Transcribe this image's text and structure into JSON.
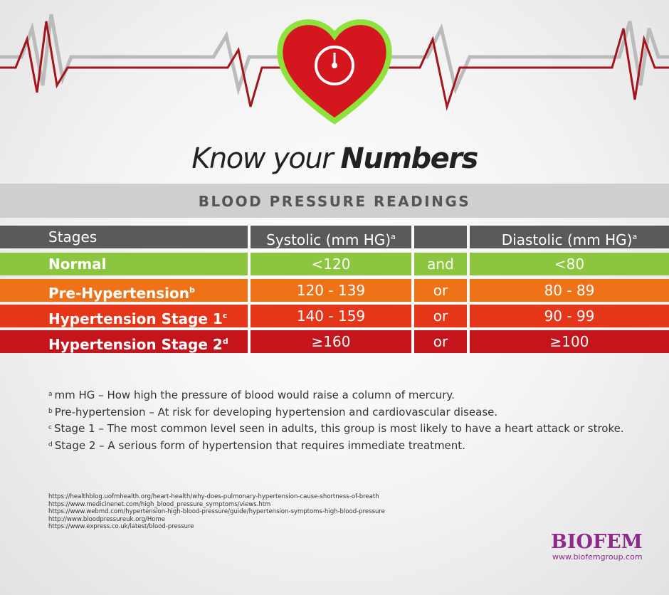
{
  "header": {
    "title_light": "Know your",
    "title_bold": "Numbers",
    "subtitle": "BLOOD PRESSURE READINGS"
  },
  "table": {
    "columns": [
      {
        "label": "Stages"
      },
      {
        "label": "Systolic (mm HG)",
        "sup": "a"
      },
      {
        "label": "Diastolic (mm HG)",
        "sup": "a"
      }
    ],
    "rows": [
      {
        "stage": "Normal",
        "systolic": "<120",
        "conjunction": "and",
        "diastolic": "<80",
        "color": "#8cc63e"
      },
      {
        "stage": "Pre-Hypertension",
        "sup": "b",
        "systolic": "120 - 139",
        "conjunction": "or",
        "diastolic": "80 - 89",
        "color": "#ee7318"
      },
      {
        "stage": "Hypertension Stage 1",
        "sup": "c",
        "systolic": "140 - 159",
        "conjunction": "or",
        "diastolic": "90 - 99",
        "color": "#e6361a"
      },
      {
        "stage": "Hypertension Stage 2",
        "sup": "d",
        "systolic": "≥160",
        "conjunction": "or",
        "diastolic": "≥100",
        "color": "#c4141c"
      }
    ]
  },
  "footnotes": [
    {
      "mark": "a",
      "text": "mm HG – How high the pressure of blood would raise a column of mercury."
    },
    {
      "mark": "b",
      "text": "Pre-hypertension – At risk for developing hypertension and cardiovascular disease."
    },
    {
      "mark": "c",
      "text": "Stage 1 – The most common level seen in adults, this group is most likely to have a heart attack or stroke."
    },
    {
      "mark": "d",
      "text": "Stage 2 – A serious form of hypertension that requires immediate treatment."
    }
  ],
  "sources": [
    "https://healthblog.uofmhealth.org/heart-health/why-does-pulmonary-hypertension-cause-shortness-of-breath",
    "https://www.medicinenet.com/high_blood_pressure_symptoms/views.htm",
    "https://www.webmd.com/hypertension-high-blood-pressure/guide/hypertension-symptoms-high-blood-pressure",
    "http://www.bloodpressureuk.org/Home",
    "https://www.express.co.uk/latest/blood-pressure"
  ],
  "logo": {
    "name": "BIOFEM",
    "url": "www.biofemgroup.com"
  }
}
